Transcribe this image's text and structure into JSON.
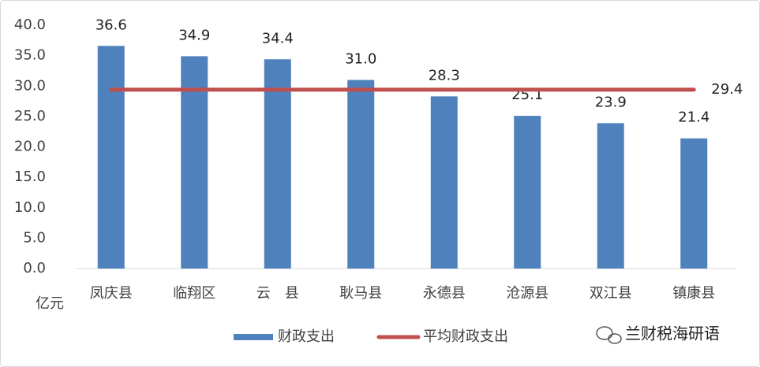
{
  "chart_data": {
    "type": "bar",
    "categories": [
      "凤庆县",
      "临翔区",
      "云　县",
      "耿马县",
      "永德县",
      "沧源县",
      "双江县",
      "镇康县"
    ],
    "series": [
      {
        "name": "财政支出",
        "color": "#4f81bd",
        "type": "bar",
        "values": [
          36.6,
          34.9,
          34.4,
          31.0,
          28.3,
          25.1,
          23.9,
          21.4
        ],
        "value_labels": [
          "36.6",
          "34.9",
          "34.4",
          "31.0",
          "28.3",
          "25.1",
          "23.9",
          "21.4"
        ]
      },
      {
        "name": "平均财政支出",
        "color": "#c0504d",
        "type": "line",
        "values": [
          29.4,
          29.4,
          29.4,
          29.4,
          29.4,
          29.4,
          29.4,
          29.4
        ],
        "value_labels": [
          null,
          null,
          null,
          null,
          null,
          null,
          null,
          "29.4"
        ]
      }
    ],
    "y_unit": "亿元",
    "ylim": [
      0,
      40
    ],
    "yticks": [
      {
        "value": 0,
        "label": "0.0"
      },
      {
        "value": 5,
        "label": "5.0"
      },
      {
        "value": 10,
        "label": "10.0"
      },
      {
        "value": 15,
        "label": "15.0"
      },
      {
        "value": 20,
        "label": "20.0"
      },
      {
        "value": 25,
        "label": "25.0"
      },
      {
        "value": 30,
        "label": "30.0"
      },
      {
        "value": 35,
        "label": "35.0"
      },
      {
        "value": 40,
        "label": "40.0"
      }
    ],
    "grid": false,
    "legend": "bottom",
    "watermark": "兰财税海研语"
  }
}
